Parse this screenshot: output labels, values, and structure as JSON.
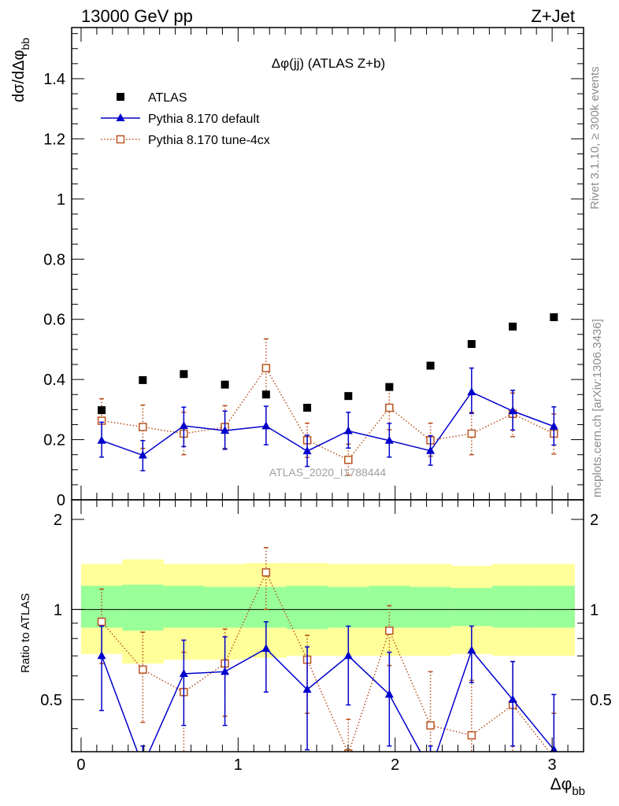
{
  "header": {
    "left": "13000 GeV pp",
    "right": "Z+Jet"
  },
  "side_labels": {
    "rivet": "Rivet 3.1.10, ≥ 300k events",
    "mcplots": "mcplots.cern.ch [arXiv:1306.3436]"
  },
  "colors": {
    "data": "#000000",
    "default": "#0000cc",
    "tune": "#b8531f",
    "band_inner": "#99ff99",
    "band_outer": "#ffff99"
  },
  "chart_data": [
    {
      "type": "scatter",
      "title": "Δφ(jj) (ATLAS Z+b)",
      "ylabel_main": "dσ/dΔφ",
      "ylabel_sub": "bb",
      "watermark": "ATLAS_2020_I1788444",
      "ylim": [
        0,
        1.57
      ],
      "yticks": [
        0,
        0.2,
        0.4,
        0.6,
        0.8,
        1,
        1.2,
        1.4
      ],
      "ytick_labels": [
        "0",
        "0.2",
        "0.4",
        "0.6",
        "0.8",
        "1",
        "1.2",
        "1.4"
      ],
      "xlim": [
        -0.06,
        3.2
      ],
      "legend_position": "top-left",
      "legend": [
        "ATLAS",
        "Pythia 8.170 default",
        "Pythia 8.170 tune-4cx"
      ],
      "x": [
        0.131,
        0.393,
        0.654,
        0.916,
        1.178,
        1.44,
        1.702,
        1.963,
        2.225,
        2.487,
        2.749,
        3.011
      ],
      "series": [
        {
          "name": "ATLAS",
          "style": "black-square",
          "values": [
            0.298,
            0.398,
            0.418,
            0.383,
            0.35,
            0.306,
            0.345,
            0.375,
            0.446,
            0.518,
            0.576,
            0.607
          ]
        },
        {
          "name": "Pythia 8.170 default",
          "style": "blue-triangle-line",
          "values": [
            0.197,
            0.148,
            0.246,
            0.23,
            0.245,
            0.162,
            0.229,
            0.197,
            0.163,
            0.358,
            0.295,
            0.244
          ],
          "err_up": [
            0.258,
            0.197,
            0.308,
            0.295,
            0.311,
            0.215,
            0.291,
            0.254,
            0.213,
            0.438,
            0.364,
            0.309
          ],
          "err_down": [
            0.142,
            0.097,
            0.177,
            0.168,
            0.183,
            0.111,
            0.172,
            0.142,
            0.115,
            0.287,
            0.232,
            0.182
          ]
        },
        {
          "name": "Pythia 8.170 tune-4cx",
          "style": "orange-open-square-dotted",
          "values": [
            0.263,
            0.242,
            0.22,
            0.242,
            0.438,
            0.198,
            0.133,
            0.306,
            0.198,
            0.22,
            0.286,
            0.22
          ],
          "err_up": [
            0.336,
            0.315,
            0.291,
            0.313,
            0.535,
            0.255,
            0.185,
            0.386,
            0.255,
            0.291,
            0.355,
            0.285
          ],
          "err_down": [
            0.198,
            0.171,
            0.15,
            0.171,
            0.342,
            0.141,
            0.082,
            0.233,
            0.145,
            0.15,
            0.21,
            0.152
          ]
        }
      ]
    },
    {
      "type": "scatter",
      "ylabel": "Ratio to ATLAS",
      "xlabel_main": "Δφ",
      "xlabel_sub": "bb",
      "ylim": [
        0.335,
        2.325
      ],
      "yticks": [
        0.5,
        1,
        2
      ],
      "ytick_labels": [
        "0.5",
        "1",
        "2"
      ],
      "xlim": [
        -0.06,
        3.2
      ],
      "xticks": [
        0,
        1,
        2,
        3
      ],
      "xtick_labels": [
        "0",
        "1",
        "2",
        "3"
      ],
      "reference_line": 1,
      "bin_edges": [
        0,
        0.262,
        0.524,
        0.785,
        1.047,
        1.309,
        1.571,
        1.833,
        2.094,
        2.356,
        2.618,
        2.88,
        3.142
      ],
      "band_inner_low": [
        0.87,
        0.85,
        0.87,
        0.87,
        0.87,
        0.86,
        0.87,
        0.87,
        0.87,
        0.88,
        0.87,
        0.87
      ],
      "band_inner_high": [
        1.2,
        1.21,
        1.2,
        1.19,
        1.19,
        1.2,
        1.19,
        1.2,
        1.19,
        1.18,
        1.2,
        1.2
      ],
      "band_outer_low": [
        0.71,
        0.66,
        0.68,
        0.68,
        0.69,
        0.7,
        0.7,
        0.7,
        0.7,
        0.71,
        0.7,
        0.7
      ],
      "band_outer_high": [
        1.42,
        1.47,
        1.42,
        1.42,
        1.43,
        1.43,
        1.42,
        1.42,
        1.42,
        1.4,
        1.42,
        1.42
      ],
      "x": [
        0.131,
        0.393,
        0.654,
        0.916,
        1.178,
        1.44,
        1.702,
        1.963,
        2.225,
        2.487,
        2.749,
        3.011
      ],
      "series": [
        {
          "name": "Pythia 8.170 default",
          "values": [
            0.7,
            0.3,
            0.61,
            0.62,
            0.74,
            0.54,
            0.7,
            0.52,
            0.29,
            0.73,
            0.5,
            0.34
          ],
          "err_up": [
            0.88,
            0.35,
            0.79,
            0.81,
            0.91,
            0.75,
            0.88,
            0.72,
            0.35,
            0.88,
            0.67,
            0.52
          ],
          "err_down": [
            0.46,
            0.28,
            0.41,
            0.41,
            0.53,
            0.34,
            0.48,
            0.35,
            0.27,
            0.57,
            0.35,
            0.27
          ]
        },
        {
          "name": "Pythia 8.170 tune-4cx",
          "values": [
            0.91,
            0.63,
            0.53,
            0.66,
            1.33,
            0.68,
            0.33,
            0.85,
            0.41,
            0.38,
            0.48,
            0.32
          ],
          "err_up": [
            1.17,
            0.84,
            0.72,
            0.86,
            1.61,
            0.82,
            0.43,
            1.03,
            0.62,
            0.58,
            0.67,
            0.45
          ],
          "err_down": [
            0.66,
            0.42,
            0.33,
            0.44,
            1.0,
            0.45,
            0.24,
            0.65,
            0.31,
            0.26,
            0.31,
            0.23
          ]
        }
      ]
    }
  ]
}
